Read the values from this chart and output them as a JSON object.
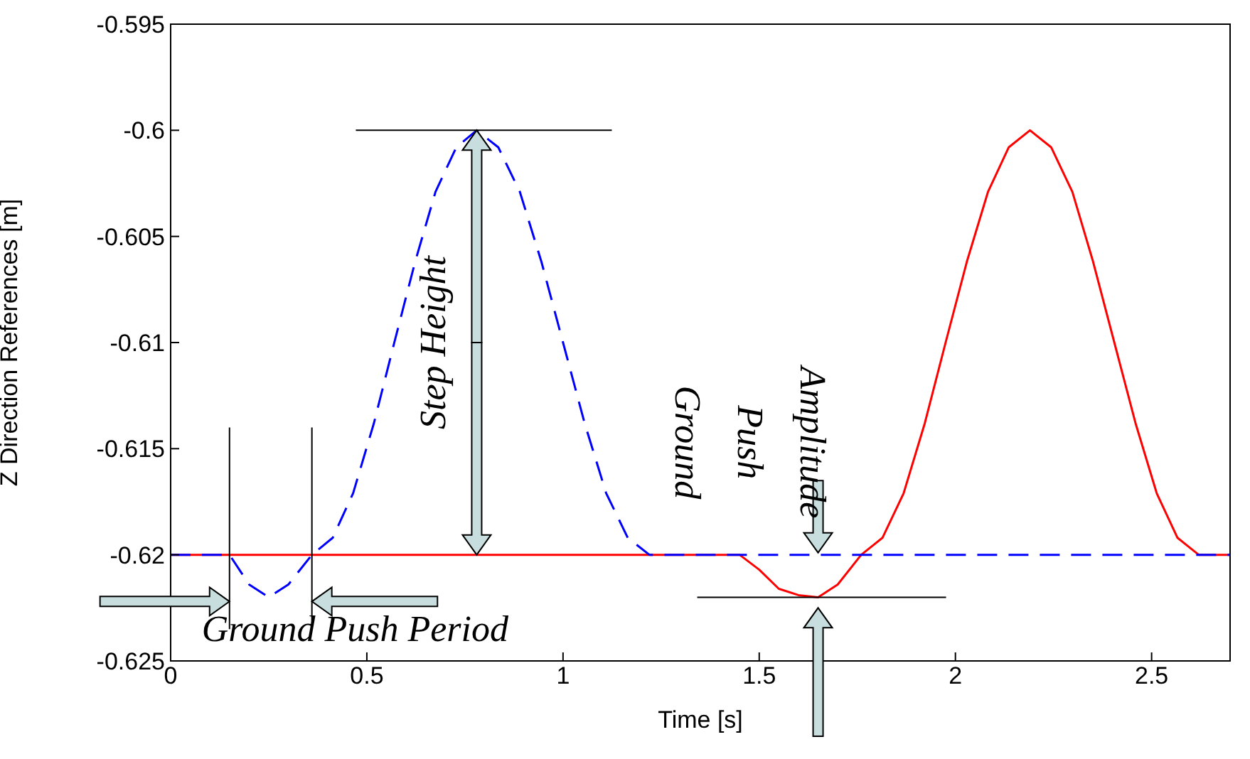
{
  "chart_data": {
    "type": "line",
    "xlabel": "Time [s]",
    "ylabel": "Z Direction References [m]",
    "xlim": [
      0,
      2.7
    ],
    "ylim": [
      -0.625,
      -0.595
    ],
    "xticks": [
      0,
      0.5,
      1,
      1.5,
      2,
      2.5
    ],
    "yticks": [
      -0.625,
      -0.62,
      -0.615,
      -0.61,
      -0.605,
      -0.6,
      -0.595
    ],
    "grid": false,
    "legend": false,
    "marker": "none",
    "series": [
      {
        "color": "#ff0000",
        "line_style": "solid",
        "x": [
          0,
          1.45,
          1.5,
          1.55,
          1.6,
          1.65,
          1.7,
          1.76,
          1.814,
          1.868,
          1.922,
          1.975,
          2.029,
          2.083,
          2.136,
          2.19,
          2.244,
          2.298,
          2.351,
          2.405,
          2.459,
          2.513,
          2.566,
          2.62,
          2.7
        ],
        "values": [
          -0.62,
          -0.62,
          -0.6207,
          -0.6216,
          -0.6219,
          -0.622,
          -0.6214,
          -0.62,
          -0.6192,
          -0.6171,
          -0.6138,
          -0.61,
          -0.6062,
          -0.6029,
          -0.6008,
          -0.6,
          -0.6008,
          -0.6029,
          -0.6062,
          -0.61,
          -0.6138,
          -0.6171,
          -0.6192,
          -0.62,
          -0.62
        ]
      },
      {
        "color": "#0000ff",
        "line_style": "dashed",
        "x": [
          0,
          0.15,
          0.2,
          0.25,
          0.3,
          0.36,
          0.413,
          0.465,
          0.518,
          0.57,
          0.623,
          0.675,
          0.728,
          0.78,
          0.835,
          0.89,
          0.945,
          1.0,
          1.055,
          1.11,
          1.165,
          1.22,
          2.7
        ],
        "values": [
          -0.62,
          -0.62,
          -0.6214,
          -0.622,
          -0.6214,
          -0.62,
          -0.6192,
          -0.6171,
          -0.6138,
          -0.61,
          -0.6062,
          -0.6029,
          -0.6008,
          -0.6,
          -0.6008,
          -0.6029,
          -0.6062,
          -0.61,
          -0.6138,
          -0.6171,
          -0.6192,
          -0.62,
          -0.62
        ]
      }
    ],
    "annotations": [
      "Step Height",
      "Ground Push Period",
      "Ground Push Amplitude"
    ]
  }
}
